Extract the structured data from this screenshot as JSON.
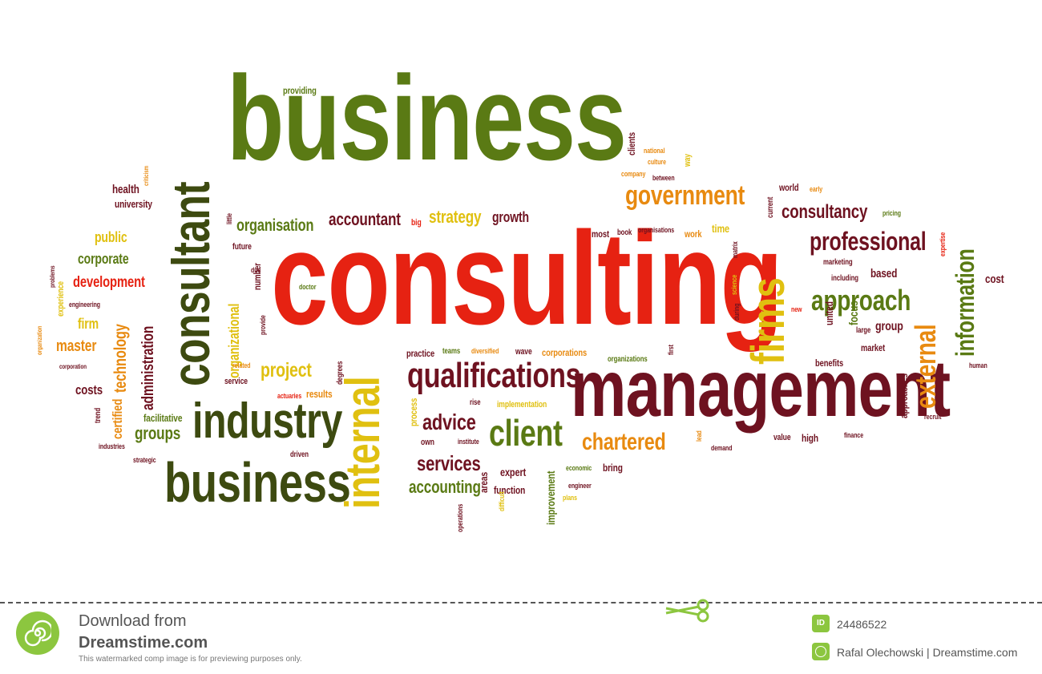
{
  "colors": {
    "olive": "#5a7a14",
    "darkolive": "#3d4a10",
    "red": "#e62212",
    "maroon": "#6e1220",
    "orange": "#e88a10",
    "yellow": "#e0c010",
    "mustard": "#b8a020",
    "green_logo": "#8cc63f"
  },
  "words": [
    {
      "t": "business",
      "color": "#5a7a14"
    },
    {
      "t": "consulting",
      "color": "#e62212"
    },
    {
      "t": "management",
      "color": "#6e1220"
    },
    {
      "t": "consultant",
      "color": "#3d4a10"
    },
    {
      "t": "industry",
      "color": "#3d4a10"
    },
    {
      "t": "business",
      "color": "#3d4a10"
    },
    {
      "t": "internal",
      "color": "#e0c010"
    },
    {
      "t": "firms",
      "color": "#e0c010"
    },
    {
      "t": "qualifications",
      "color": "#6e1220"
    },
    {
      "t": "client",
      "color": "#5a7a14"
    },
    {
      "t": "external",
      "color": "#e88a10"
    },
    {
      "t": "information",
      "color": "#5a7a14"
    },
    {
      "t": "professional",
      "color": "#6e1220"
    },
    {
      "t": "approach",
      "color": "#5a7a14"
    },
    {
      "t": "government",
      "color": "#e88a10"
    },
    {
      "t": "consultancy",
      "color": "#6e1220"
    },
    {
      "t": "organisation",
      "color": "#5a7a14"
    },
    {
      "t": "accountant",
      "color": "#6e1220"
    },
    {
      "t": "strategy",
      "color": "#e0c010"
    },
    {
      "t": "growth",
      "color": "#6e1220"
    },
    {
      "t": "advice",
      "color": "#6e1220"
    },
    {
      "t": "services",
      "color": "#6e1220"
    },
    {
      "t": "chartered",
      "color": "#e88a10"
    },
    {
      "t": "accounting",
      "color": "#5a7a14"
    },
    {
      "t": "project",
      "color": "#e0c010"
    },
    {
      "t": "groups",
      "color": "#5a7a14"
    },
    {
      "t": "administration",
      "color": "#6e1220"
    },
    {
      "t": "technology",
      "color": "#e88a10"
    },
    {
      "t": "organizational",
      "color": "#e0c010"
    },
    {
      "t": "development",
      "color": "#e62212"
    },
    {
      "t": "corporate",
      "color": "#5a7a14"
    },
    {
      "t": "public",
      "color": "#e0c010"
    },
    {
      "t": "master",
      "color": "#e88a10"
    },
    {
      "t": "firm",
      "color": "#e0c010"
    },
    {
      "t": "costs",
      "color": "#6e1220"
    },
    {
      "t": "certified",
      "color": "#e88a10"
    },
    {
      "t": "facilitative",
      "color": "#5a7a14"
    },
    {
      "t": "health",
      "color": "#6e1220"
    },
    {
      "t": "university",
      "color": "#6e1220"
    },
    {
      "t": "providing",
      "color": "#5a7a14"
    },
    {
      "t": "clients",
      "color": "#6e1220"
    },
    {
      "t": "national",
      "color": "#e88a10"
    },
    {
      "t": "culture",
      "color": "#e88a10"
    },
    {
      "t": "company",
      "color": "#e88a10"
    },
    {
      "t": "between",
      "color": "#6e1220"
    },
    {
      "t": "way",
      "color": "#e0c010"
    },
    {
      "t": "world",
      "color": "#6e1220"
    },
    {
      "t": "early",
      "color": "#e88a10"
    },
    {
      "t": "current",
      "color": "#6e1220"
    },
    {
      "t": "pricing",
      "color": "#5a7a14"
    },
    {
      "t": "time",
      "color": "#e0c010"
    },
    {
      "t": "work",
      "color": "#e88a10"
    },
    {
      "t": "most",
      "color": "#6e1220"
    },
    {
      "t": "book",
      "color": "#6e1220"
    },
    {
      "t": "organisations",
      "color": "#6e1220"
    },
    {
      "t": "big",
      "color": "#e62212"
    },
    {
      "t": "little",
      "color": "#6e1220"
    },
    {
      "t": "future",
      "color": "#6e1220"
    },
    {
      "t": "number",
      "color": "#6e1220"
    },
    {
      "t": "due",
      "color": "#6e1220"
    },
    {
      "t": "doctor",
      "color": "#5a7a14"
    },
    {
      "t": "provide",
      "color": "#6e1220"
    },
    {
      "t": "related",
      "color": "#e88a10"
    },
    {
      "t": "service",
      "color": "#6e1220"
    },
    {
      "t": "degrees",
      "color": "#6e1220"
    },
    {
      "t": "actuaries",
      "color": "#e62212"
    },
    {
      "t": "results",
      "color": "#e88a10"
    },
    {
      "t": "practice",
      "color": "#6e1220"
    },
    {
      "t": "teams",
      "color": "#5a7a14"
    },
    {
      "t": "diversified",
      "color": "#e88a10"
    },
    {
      "t": "wave",
      "color": "#6e1220"
    },
    {
      "t": "corporations",
      "color": "#e88a10"
    },
    {
      "t": "organizations",
      "color": "#5a7a14"
    },
    {
      "t": "first",
      "color": "#6e1220"
    },
    {
      "t": "implementation",
      "color": "#e0c010"
    },
    {
      "t": "rise",
      "color": "#6e1220"
    },
    {
      "t": "process",
      "color": "#e0c010"
    },
    {
      "t": "own",
      "color": "#6e1220"
    },
    {
      "t": "institute",
      "color": "#6e1220"
    },
    {
      "t": "driven",
      "color": "#6e1220"
    },
    {
      "t": "expert",
      "color": "#6e1220"
    },
    {
      "t": "areas",
      "color": "#6e1220"
    },
    {
      "t": "function",
      "color": "#6e1220"
    },
    {
      "t": "difficult",
      "color": "#e0c010"
    },
    {
      "t": "operations",
      "color": "#6e1220"
    },
    {
      "t": "improvement",
      "color": "#5a7a14"
    },
    {
      "t": "economic",
      "color": "#5a7a14"
    },
    {
      "t": "bring",
      "color": "#6e1220"
    },
    {
      "t": "engineer",
      "color": "#6e1220"
    },
    {
      "t": "plans",
      "color": "#e0c010"
    },
    {
      "t": "lead",
      "color": "#e88a10"
    },
    {
      "t": "demand",
      "color": "#6e1220"
    },
    {
      "t": "value",
      "color": "#6e1220"
    },
    {
      "t": "high",
      "color": "#6e1220"
    },
    {
      "t": "finance",
      "color": "#6e1220"
    },
    {
      "t": "recruit",
      "color": "#6e1220"
    },
    {
      "t": "human",
      "color": "#6e1220"
    },
    {
      "t": "approaches",
      "color": "#6e1220"
    },
    {
      "t": "benefits",
      "color": "#6e1220"
    },
    {
      "t": "market",
      "color": "#6e1220"
    },
    {
      "t": "large",
      "color": "#6e1220"
    },
    {
      "t": "group",
      "color": "#6e1220"
    },
    {
      "t": "focus",
      "color": "#5a7a14"
    },
    {
      "t": "united",
      "color": "#6e1220"
    },
    {
      "t": "based",
      "color": "#6e1220"
    },
    {
      "t": "including",
      "color": "#6e1220"
    },
    {
      "t": "marketing",
      "color": "#6e1220"
    },
    {
      "t": "cost",
      "color": "#6e1220"
    },
    {
      "t": "expertise",
      "color": "#e62212"
    },
    {
      "t": "new",
      "color": "#e62212"
    },
    {
      "t": "during",
      "color": "#6e1220"
    },
    {
      "t": "science",
      "color": "#e0c010"
    },
    {
      "t": "matrix",
      "color": "#6e1220"
    },
    {
      "t": "engineering",
      "color": "#6e1220"
    },
    {
      "t": "experience",
      "color": "#e0c010"
    },
    {
      "t": "problems",
      "color": "#6e1220"
    },
    {
      "t": "organization",
      "color": "#e88a10"
    },
    {
      "t": "corporation",
      "color": "#6e1220"
    },
    {
      "t": "trend",
      "color": "#6e1220"
    },
    {
      "t": "industries",
      "color": "#6e1220"
    },
    {
      "t": "strategic",
      "color": "#6e1220"
    },
    {
      "t": "criticism",
      "color": "#e88a10"
    }
  ],
  "footer": {
    "download_from": "Download from",
    "site": "Dreamstime.com",
    "notice": "This watermarked comp image is for previewing purposes only.",
    "id_label": "ID",
    "image_id": "24486522",
    "credit": "Rafal Olechowski | Dreamstime.com",
    "logo_icon": "spiral-logo-icon",
    "scissors_icon": "scissors-icon"
  }
}
